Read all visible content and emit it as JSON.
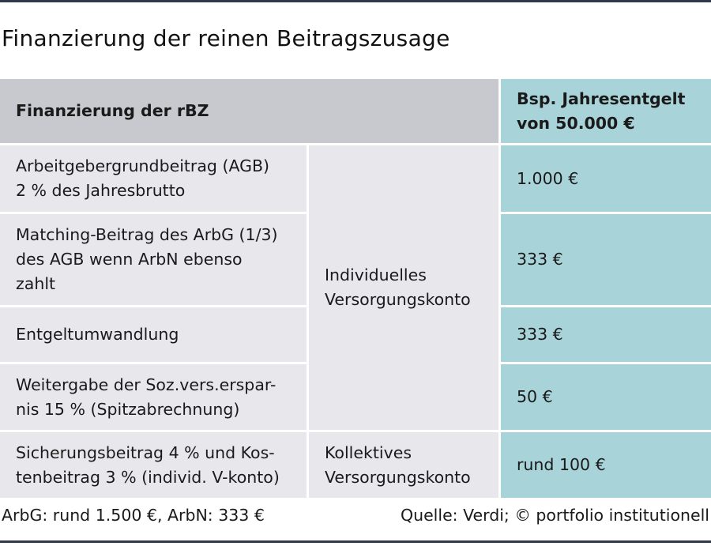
{
  "title": "Finanzierung der reinen Beitragszusage",
  "table": {
    "header": {
      "label": "Finanzierung der rBZ",
      "value": "Bsp. Jahresentgelt\nvon 50.000 €"
    },
    "rows": [
      {
        "label": "Arbeitgebergrundbeitrag (AGB)\n2 % des Jahresbrutto",
        "value": "1.000 €"
      },
      {
        "label": "Matching-Beitrag des ArbG (1/3)\ndes AGB wenn ArbN ebenso\nzahlt",
        "value": "333 €"
      },
      {
        "label": "Entgeltumwandlung",
        "value": "333 €"
      },
      {
        "label": "Weitergabe der Soz.vers.erspar-\nnis 15 % (Spitzabrechnung)",
        "value": "50 €"
      },
      {
        "label": "Sicherungsbeitrag 4 % und Kos-\ntenbeitrag 3 % (individ. V-konto)",
        "value": "rund 100 €"
      }
    ],
    "groups": {
      "individual": "Individuelles\nVersorgungskonto",
      "collective": "Kollektives\nVersorgungskonto"
    }
  },
  "footer": {
    "note": "ArbG: rund 1.500 €, ArbN: 333 €",
    "source": "Quelle: Verdi; © portfolio institutionell"
  }
}
